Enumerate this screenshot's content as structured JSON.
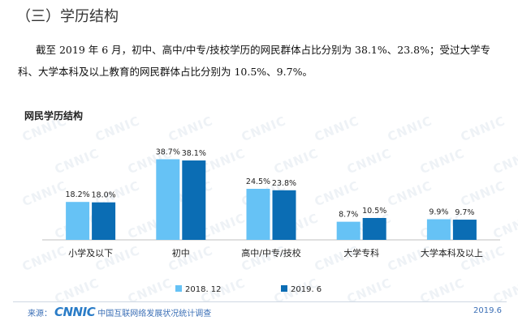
{
  "section_heading": "（三）学历结构",
  "body_text": "截至 2019 年 6 月，初中、高中/中专/技校学历的网民群体占比分别为 38.1%、23.8%；受过大学专科、大学本科及以上教育的网民群体占比分别为 10.5%、9.7%。",
  "watermark_text": "CNNIC",
  "chart_data": {
    "type": "bar",
    "title": "网民学历结构",
    "categories": [
      "小学及以下",
      "初中",
      "高中/中专/技校",
      "大学专科",
      "大学本科及以上"
    ],
    "series": [
      {
        "name": "2018. 12",
        "color": "#66c2f5",
        "values": [
          18.2,
          38.7,
          24.5,
          8.7,
          9.9
        ]
      },
      {
        "name": "2019. 6",
        "color": "#0b6db4",
        "values": [
          18.0,
          38.1,
          23.8,
          10.5,
          9.7
        ]
      }
    ],
    "value_suffix": "%",
    "ylim": [
      0,
      42
    ],
    "grid": false,
    "legend_position": "bottom"
  },
  "footer": {
    "source_label": "来源：",
    "logo_text": "CNNIC",
    "org_name": "中国互联网络发展状况统计调查",
    "date": "2019.6"
  }
}
